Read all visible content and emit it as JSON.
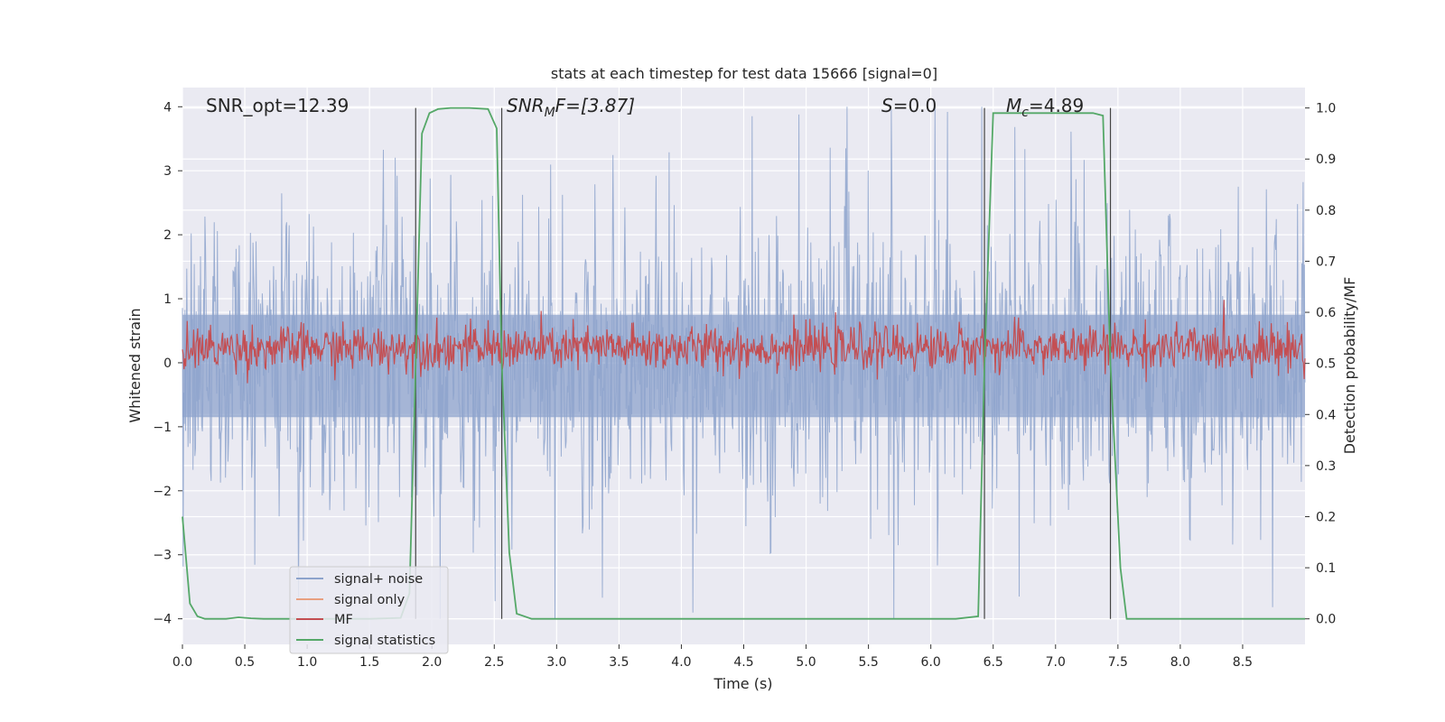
{
  "chart_data": {
    "type": "line",
    "title": "stats at each timestep for test data 15666 [signal=0]",
    "xlabel": "Time (s)",
    "ylabel_left": "Whitened strain",
    "ylabel_right": "Detection probability/MF",
    "xlim": [
      0.0,
      9.0
    ],
    "ylim_left": [
      -4.4,
      4.3
    ],
    "ylim_right": [
      -0.05,
      1.04
    ],
    "x_ticks": [
      "0.0",
      "0.5",
      "1.0",
      "1.5",
      "2.0",
      "2.5",
      "3.0",
      "3.5",
      "4.0",
      "4.5",
      "5.0",
      "5.5",
      "6.0",
      "6.5",
      "7.0",
      "7.5",
      "8.0",
      "8.5"
    ],
    "x_tick_values": [
      0.0,
      0.5,
      1.0,
      1.5,
      2.0,
      2.5,
      3.0,
      3.5,
      4.0,
      4.5,
      5.0,
      5.5,
      6.0,
      6.5,
      7.0,
      7.5,
      8.0,
      8.5
    ],
    "y_left_ticks": [
      "4",
      "3",
      "2",
      "1",
      "0",
      "−1",
      "−2",
      "−3",
      "−4"
    ],
    "y_left_tick_values": [
      4,
      3,
      2,
      1,
      0,
      -1,
      -2,
      -3,
      -4
    ],
    "y_right_ticks": [
      "1.0",
      "0.9",
      "0.8",
      "0.7",
      "0.6",
      "0.5",
      "0.4",
      "0.3",
      "0.2",
      "0.1",
      "0.0"
    ],
    "y_right_tick_values": [
      1.0,
      0.9,
      0.8,
      0.7,
      0.6,
      0.5,
      0.4,
      0.3,
      0.2,
      0.1,
      0.0
    ],
    "grid": true,
    "legend_position": "lower-left",
    "annotations": {
      "snr_opt": "SNR_opt=12.39",
      "snr_mf_main": "SNR",
      "snr_mf_sub": "M",
      "snr_mf_rest": "F=[3.87]",
      "s_main": "S",
      "s_rest": "=0.0",
      "mc_main": "M",
      "mc_sub": "c",
      "mc_rest": "=4.89"
    },
    "vertical_markers": [
      1.87,
      2.56,
      6.43,
      7.44
    ],
    "series": [
      {
        "name": "signal+ noise",
        "color": "#8da3cc",
        "note_amplitude": "roughly ±2 with spikes to ±4"
      },
      {
        "name": "signal only",
        "color": "#e8a080"
      },
      {
        "name": "MF",
        "color": "#c44e52",
        "baseline": 0.5,
        "range": [
          0.45,
          0.63
        ]
      },
      {
        "name": "signal statistics",
        "color": "#55a868",
        "x": [
          0.0,
          0.06,
          0.12,
          0.18,
          0.25,
          0.35,
          0.45,
          0.55,
          0.65,
          1.0,
          1.5,
          1.75,
          1.82,
          1.87,
          1.92,
          1.98,
          2.05,
          2.15,
          2.3,
          2.45,
          2.52,
          2.56,
          2.62,
          2.68,
          2.8,
          3.5,
          4.5,
          5.5,
          6.2,
          6.38,
          6.43,
          6.5,
          6.6,
          7.0,
          7.3,
          7.38,
          7.44,
          7.52,
          7.57,
          7.7,
          8.5,
          9.0
        ],
        "y": [
          0.2,
          0.03,
          0.005,
          0.0,
          0.0,
          0.0,
          0.003,
          0.001,
          0.0,
          0.0,
          0.0,
          0.002,
          0.05,
          0.5,
          0.95,
          0.99,
          0.998,
          1.0,
          1.0,
          0.998,
          0.96,
          0.5,
          0.13,
          0.01,
          0.0,
          0.0,
          0.0,
          0.0,
          0.0,
          0.005,
          0.5,
          0.99,
          0.99,
          0.99,
          0.99,
          0.985,
          0.5,
          0.1,
          0.0,
          0.0,
          0.0,
          0.0
        ]
      }
    ],
    "legend": [
      "signal+ noise",
      "signal only",
      "MF",
      "signal statistics"
    ]
  }
}
